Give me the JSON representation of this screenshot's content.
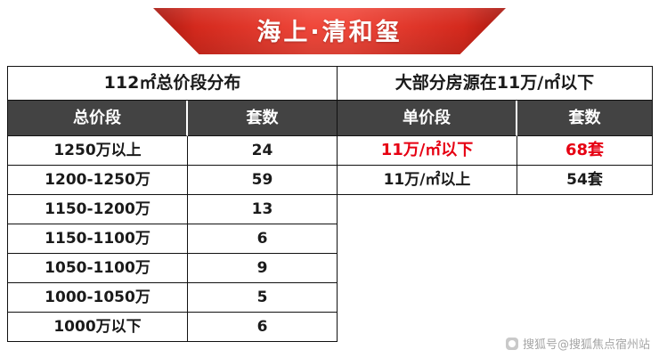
{
  "banner": {
    "title": "海上·清和玺"
  },
  "left_table": {
    "section_title": "112㎡总价段分布",
    "columns": [
      "总价段",
      "套数"
    ],
    "rows": [
      {
        "range": "1250万以上",
        "count": "24"
      },
      {
        "range": "1200-1250万",
        "count": "59"
      },
      {
        "range": "1150-1200万",
        "count": "13"
      },
      {
        "range": "1150-1100万",
        "count": "6"
      },
      {
        "range": "1050-1100万",
        "count": "9"
      },
      {
        "range": "1000-1050万",
        "count": "5"
      },
      {
        "range": "1000万以下",
        "count": "6"
      }
    ]
  },
  "right_table": {
    "section_title": "大部分房源在11万/㎡以下",
    "columns": [
      "单价段",
      "套数"
    ],
    "rows": [
      {
        "range": "11万/㎡以下",
        "count": "68套"
      },
      {
        "range": "11万/㎡以上",
        "count": "54套"
      }
    ]
  },
  "watermark": {
    "text": "搜狐号@搜狐焦点宿州站"
  },
  "colors": {
    "ribbon_red": "#f0473a",
    "ribbon_dark_red": "#a8170f",
    "header_dark": "#434343",
    "highlight_red": "#e60012",
    "border": "#111111",
    "watermark_gray": "#a6a6a6"
  },
  "chart_data": [
    {
      "type": "table",
      "title": "112㎡总价段分布",
      "columns": [
        "总价段",
        "套数"
      ],
      "rows": [
        [
          "1250万以上",
          24
        ],
        [
          "1200-1250万",
          59
        ],
        [
          "1150-1200万",
          13
        ],
        [
          "1150-1100万",
          6
        ],
        [
          "1050-1100万",
          9
        ],
        [
          "1000-1050万",
          5
        ],
        [
          "1000万以下",
          6
        ]
      ]
    },
    {
      "type": "table",
      "title": "大部分房源在11万/㎡以下",
      "columns": [
        "单价段",
        "套数"
      ],
      "rows": [
        [
          "11万/㎡以下",
          "68套"
        ],
        [
          "11万/㎡以上",
          "54套"
        ]
      ],
      "highlight_row": 0
    }
  ]
}
